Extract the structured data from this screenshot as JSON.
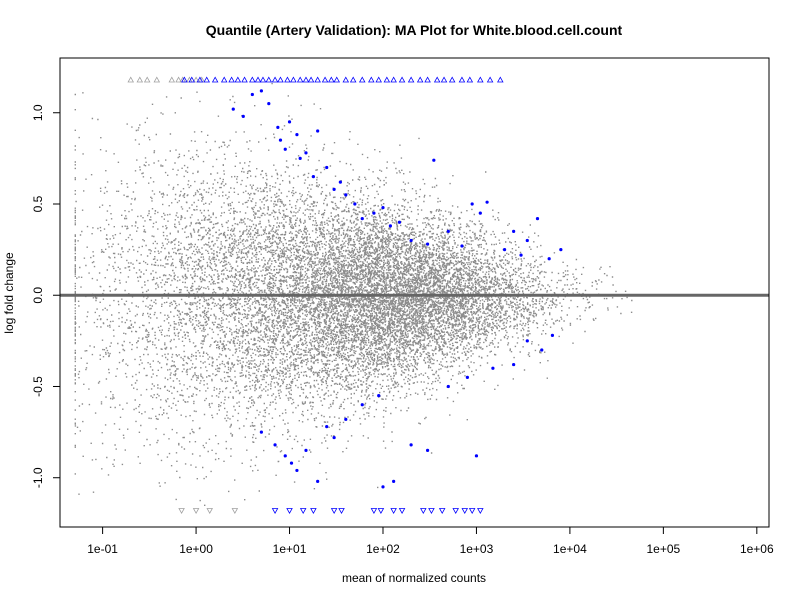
{
  "chart_data": {
    "type": "scatter",
    "title": "Quantile (Artery Validation): MA Plot for White.blood.cell.count",
    "xlabel": "mean of normalized counts",
    "ylabel": "log fold change",
    "x_scale": "log10",
    "xlim": [
      0.035,
      1350000.0
    ],
    "ylim": [
      -1.27,
      1.3
    ],
    "x_ticks": [
      {
        "value": 0.1,
        "label": "1e-01"
      },
      {
        "value": 1,
        "label": "1e+00"
      },
      {
        "value": 10,
        "label": "1e+01"
      },
      {
        "value": 100,
        "label": "1e+02"
      },
      {
        "value": 1000,
        "label": "1e+03"
      },
      {
        "value": 10000,
        "label": "1e+04"
      },
      {
        "value": 100000,
        "label": "1e+05"
      },
      {
        "value": 1000000,
        "label": "1e+06"
      }
    ],
    "y_ticks": [
      {
        "value": -1.0,
        "label": "-1.0"
      },
      {
        "value": -0.5,
        "label": "-0.5"
      },
      {
        "value": 0.0,
        "label": "0.0"
      },
      {
        "value": 0.5,
        "label": "0.5"
      },
      {
        "value": 1.0,
        "label": "1.0"
      }
    ],
    "reference_line": {
      "y": 0,
      "color": "#666666"
    },
    "grid": false,
    "colors": {
      "non_significant": "#8c8c8c",
      "significant": "#0000ff"
    },
    "significant_points": [
      [
        2.5,
        1.02
      ],
      [
        3.2,
        0.98
      ],
      [
        4.0,
        1.1
      ],
      [
        5.0,
        1.12
      ],
      [
        6.0,
        1.05
      ],
      [
        7.5,
        0.92
      ],
      [
        8.0,
        0.85
      ],
      [
        9.0,
        0.8
      ],
      [
        10.0,
        0.95
      ],
      [
        12.0,
        0.88
      ],
      [
        13.0,
        0.75
      ],
      [
        15.0,
        0.78
      ],
      [
        18.0,
        0.65
      ],
      [
        20.0,
        0.9
      ],
      [
        25.0,
        0.7
      ],
      [
        30.0,
        0.58
      ],
      [
        35.0,
        0.62
      ],
      [
        40.0,
        0.55
      ],
      [
        50.0,
        0.5
      ],
      [
        60.0,
        0.42
      ],
      [
        80.0,
        0.45
      ],
      [
        100.0,
        0.48
      ],
      [
        120.0,
        0.38
      ],
      [
        150.0,
        0.4
      ],
      [
        200.0,
        0.3
      ],
      [
        300.0,
        0.28
      ],
      [
        350.0,
        0.74
      ],
      [
        500.0,
        0.35
      ],
      [
        700.0,
        0.27
      ],
      [
        900.0,
        0.5
      ],
      [
        1100.0,
        0.45
      ],
      [
        1300.0,
        0.51
      ],
      [
        2000.0,
        0.25
      ],
      [
        2500.0,
        0.35
      ],
      [
        3000.0,
        0.22
      ],
      [
        3500.0,
        0.3
      ],
      [
        4500.0,
        0.42
      ],
      [
        6000.0,
        0.2
      ],
      [
        8000.0,
        0.25
      ],
      [
        5.0,
        -0.75
      ],
      [
        7.0,
        -0.82
      ],
      [
        9.0,
        -0.88
      ],
      [
        10.5,
        -0.92
      ],
      [
        12.0,
        -0.96
      ],
      [
        15.0,
        -0.85
      ],
      [
        20.0,
        -1.02
      ],
      [
        25.0,
        -0.72
      ],
      [
        30.0,
        -0.78
      ],
      [
        40.0,
        -0.68
      ],
      [
        60.0,
        -0.6
      ],
      [
        90.0,
        -0.55
      ],
      [
        100.0,
        -1.05
      ],
      [
        130.0,
        -1.02
      ],
      [
        200.0,
        -0.82
      ],
      [
        300.0,
        -0.85
      ],
      [
        500.0,
        -0.5
      ],
      [
        800.0,
        -0.45
      ],
      [
        1000.0,
        -0.88
      ],
      [
        1500.0,
        -0.4
      ],
      [
        2500.0,
        -0.38
      ],
      [
        3500.0,
        -0.25
      ],
      [
        5000.0,
        -0.3
      ],
      [
        6500.0,
        -0.22
      ]
    ],
    "clipped_up": {
      "y": 1.18,
      "grey_x": [
        0.2,
        0.25,
        0.3,
        0.38,
        0.55,
        0.65,
        0.72,
        0.85,
        1.0,
        1.15
      ],
      "blue_x": [
        0.75,
        0.9,
        1.1,
        1.3,
        1.6,
        2.0,
        2.4,
        2.8,
        3.3,
        4.0,
        4.6,
        5.2,
        6.0,
        7.0,
        8.0,
        9.5,
        11.0,
        13.0,
        15.0,
        17.0,
        20.0,
        24.0,
        28.0,
        32.0,
        40.0,
        48.0,
        60.0,
        75.0,
        90.0,
        110.0,
        130.0,
        160.0,
        200.0,
        250.0,
        300.0,
        380.0,
        450.0,
        550.0,
        700.0,
        850.0,
        1100.0,
        1400.0,
        1800.0
      ]
    },
    "clipped_down": {
      "y": -1.18,
      "grey_x": [
        0.7,
        1.0,
        1.4,
        2.6
      ],
      "blue_x": [
        7.0,
        10.0,
        14.0,
        18.0,
        30.0,
        36.0,
        80.0,
        95.0,
        130.0,
        160.0,
        270.0,
        330.0,
        430.0,
        600.0,
        750.0,
        900.0,
        1100.0
      ]
    },
    "background_note": "Dense cloud of roughly 15000 grey points, symmetric around 0, with spread narrowing as the mean of normalized counts increases."
  }
}
